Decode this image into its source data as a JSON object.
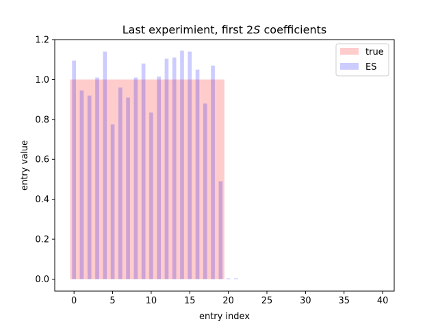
{
  "chart_data": {
    "type": "bar",
    "title_parts": [
      "Last experimient, first 2",
      "S",
      " coefficients"
    ],
    "xlabel": "entry index",
    "ylabel": "entry value",
    "xlim": [
      -2.5,
      41.5
    ],
    "ylim": [
      -0.06,
      1.2
    ],
    "xticks": [
      0,
      5,
      10,
      15,
      20,
      25,
      30,
      35,
      40
    ],
    "yticks": [
      0.0,
      0.2,
      0.4,
      0.6,
      0.8,
      1.0,
      1.2
    ],
    "xtick_labels": [
      "0",
      "5",
      "10",
      "15",
      "20",
      "25",
      "30",
      "35",
      "40"
    ],
    "ytick_labels": [
      "0.0",
      "0.2",
      "0.4",
      "0.6",
      "0.8",
      "1.0",
      "1.2"
    ],
    "legend_position": "top-right",
    "series": [
      {
        "name": "true",
        "color": "#ff0000",
        "opacity": 0.2,
        "x": [
          0,
          1,
          2,
          3,
          4,
          5,
          6,
          7,
          8,
          9,
          10,
          11,
          12,
          13,
          14,
          15,
          16,
          17,
          18,
          19,
          20,
          21,
          22,
          23,
          24,
          25,
          26,
          27,
          28,
          29,
          30,
          31,
          32,
          33,
          34,
          35,
          36,
          37,
          38,
          39
        ],
        "values": [
          1,
          1,
          1,
          1,
          1,
          1,
          1,
          1,
          1,
          1,
          1,
          1,
          1,
          1,
          1,
          1,
          1,
          1,
          1,
          1,
          0,
          0,
          0,
          0,
          0,
          0,
          0,
          0,
          0,
          0,
          0,
          0,
          0,
          0,
          0,
          0,
          0,
          0,
          0,
          0
        ]
      },
      {
        "name": "ES",
        "color": "#0000ff",
        "opacity": 0.2,
        "x": [
          0,
          1,
          2,
          3,
          4,
          5,
          6,
          7,
          8,
          9,
          10,
          11,
          12,
          13,
          14,
          15,
          16,
          17,
          18,
          19,
          20,
          21
        ],
        "values": [
          1.095,
          0.945,
          0.92,
          1.01,
          1.14,
          0.775,
          0.96,
          0.91,
          1.01,
          1.08,
          0.835,
          1.015,
          1.105,
          1.11,
          1.145,
          1.14,
          1.05,
          0.88,
          1.07,
          0.49,
          0.004,
          0.004
        ]
      }
    ]
  }
}
